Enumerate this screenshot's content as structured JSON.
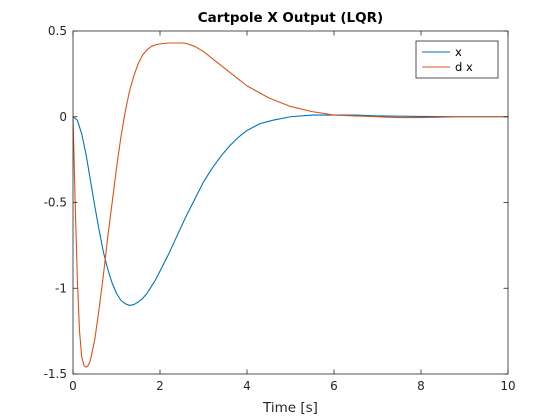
{
  "chart_data": {
    "type": "line",
    "title": "Cartpole X Output (LQR)",
    "xlabel": "Time [s]",
    "ylabel": "",
    "xlim": [
      0,
      10
    ],
    "ylim": [
      -1.5,
      0.5
    ],
    "xticks": [
      0,
      2,
      4,
      6,
      8,
      10
    ],
    "xtick_labels": [
      "0",
      "2",
      "4",
      "6",
      "8",
      "10"
    ],
    "yticks": [
      -1.5,
      -1,
      -0.5,
      0,
      0.5
    ],
    "ytick_labels": [
      "-1.5",
      "-1",
      "-0.5",
      "0",
      "0.5"
    ],
    "grid": false,
    "legend_position": "top-right",
    "series": [
      {
        "name": "x",
        "color": "#0072BD",
        "x": [
          0,
          0.1,
          0.2,
          0.3,
          0.4,
          0.5,
          0.6,
          0.7,
          0.8,
          0.9,
          1.0,
          1.1,
          1.2,
          1.3,
          1.4,
          1.5,
          1.6,
          1.7,
          1.8,
          1.9,
          2.0,
          2.2,
          2.4,
          2.6,
          2.8,
          3.0,
          3.2,
          3.4,
          3.6,
          3.8,
          4.0,
          4.3,
          4.6,
          5.0,
          5.5,
          6.0,
          6.5,
          7.0,
          8.0,
          9.0,
          10.0
        ],
        "y": [
          0,
          -0.02,
          -0.1,
          -0.22,
          -0.37,
          -0.52,
          -0.66,
          -0.79,
          -0.89,
          -0.97,
          -1.03,
          -1.07,
          -1.09,
          -1.1,
          -1.095,
          -1.08,
          -1.06,
          -1.03,
          -0.99,
          -0.95,
          -0.9,
          -0.8,
          -0.69,
          -0.58,
          -0.48,
          -0.38,
          -0.3,
          -0.23,
          -0.17,
          -0.12,
          -0.08,
          -0.04,
          -0.02,
          0.0,
          0.01,
          0.01,
          0.01,
          0.005,
          0.002,
          0.0,
          0.0
        ]
      },
      {
        "name": "d x",
        "color": "#D95319",
        "x": [
          0,
          0.05,
          0.1,
          0.15,
          0.2,
          0.25,
          0.3,
          0.35,
          0.4,
          0.5,
          0.6,
          0.7,
          0.8,
          0.9,
          1.0,
          1.1,
          1.2,
          1.3,
          1.4,
          1.5,
          1.6,
          1.7,
          1.8,
          1.9,
          2.0,
          2.2,
          2.4,
          2.5,
          2.6,
          2.8,
          3.0,
          3.2,
          3.4,
          3.6,
          3.8,
          4.0,
          4.5,
          5.0,
          5.5,
          6.0,
          6.5,
          7.0,
          7.5,
          8.0,
          9.0,
          10.0
        ],
        "y": [
          0,
          -0.5,
          -0.95,
          -1.25,
          -1.4,
          -1.45,
          -1.46,
          -1.45,
          -1.42,
          -1.3,
          -1.12,
          -0.92,
          -0.7,
          -0.5,
          -0.3,
          -0.12,
          0.03,
          0.15,
          0.24,
          0.31,
          0.36,
          0.39,
          0.41,
          0.42,
          0.425,
          0.43,
          0.43,
          0.43,
          0.428,
          0.41,
          0.38,
          0.34,
          0.3,
          0.26,
          0.22,
          0.18,
          0.11,
          0.06,
          0.03,
          0.01,
          0.005,
          0.0,
          -0.005,
          -0.005,
          0.0,
          0.0
        ]
      }
    ]
  }
}
